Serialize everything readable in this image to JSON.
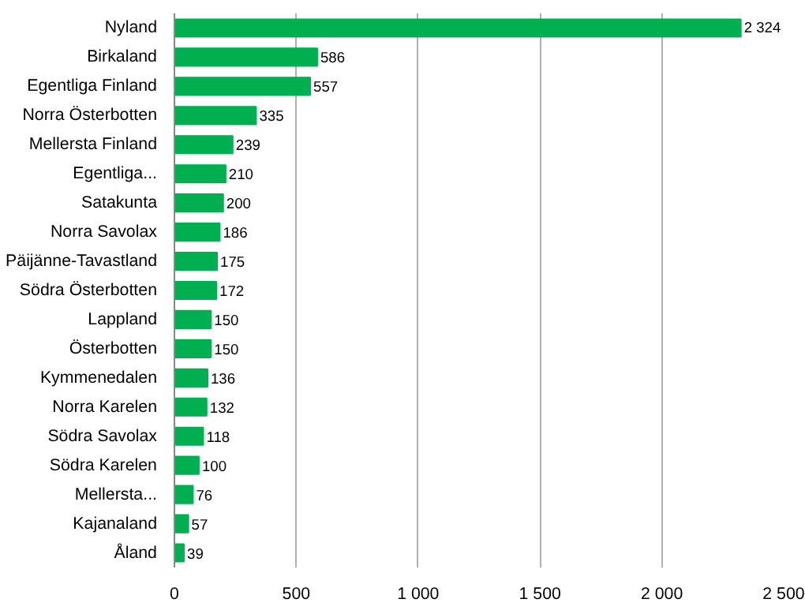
{
  "chart_data": {
    "type": "bar",
    "orientation": "horizontal",
    "categories": [
      "Nyland",
      "Birkaland",
      "Egentliga Finland",
      "Norra Österbotten",
      "Mellersta Finland",
      "Egentliga...",
      "Satakunta",
      "Norra Savolax",
      "Päijänne-Tavastland",
      "Södra Österbotten",
      "Lappland",
      "Österbotten",
      "Kymmenedalen",
      "Norra Karelen",
      "Södra Savolax",
      "Södra Karelen",
      "Mellersta...",
      "Kajanaland",
      "Åland"
    ],
    "values": [
      2324,
      586,
      557,
      335,
      239,
      210,
      200,
      186,
      175,
      172,
      150,
      150,
      136,
      132,
      118,
      100,
      76,
      57,
      39
    ],
    "value_labels": [
      "2 324",
      "586",
      "557",
      "335",
      "239",
      "210",
      "200",
      "186",
      "175",
      "172",
      "150",
      "150",
      "136",
      "132",
      "118",
      "100",
      "76",
      "57",
      "39"
    ],
    "color": "#00b050",
    "xlim": [
      0,
      2500
    ],
    "xticks": [
      0,
      500,
      {
        "value": 1000,
        "label": "1 000"
      },
      {
        "value": 1500,
        "label": "1 500"
      },
      {
        "value": 2000,
        "label": "2 000"
      },
      {
        "value": 2500,
        "label": "2 500"
      }
    ],
    "grid": "x"
  }
}
